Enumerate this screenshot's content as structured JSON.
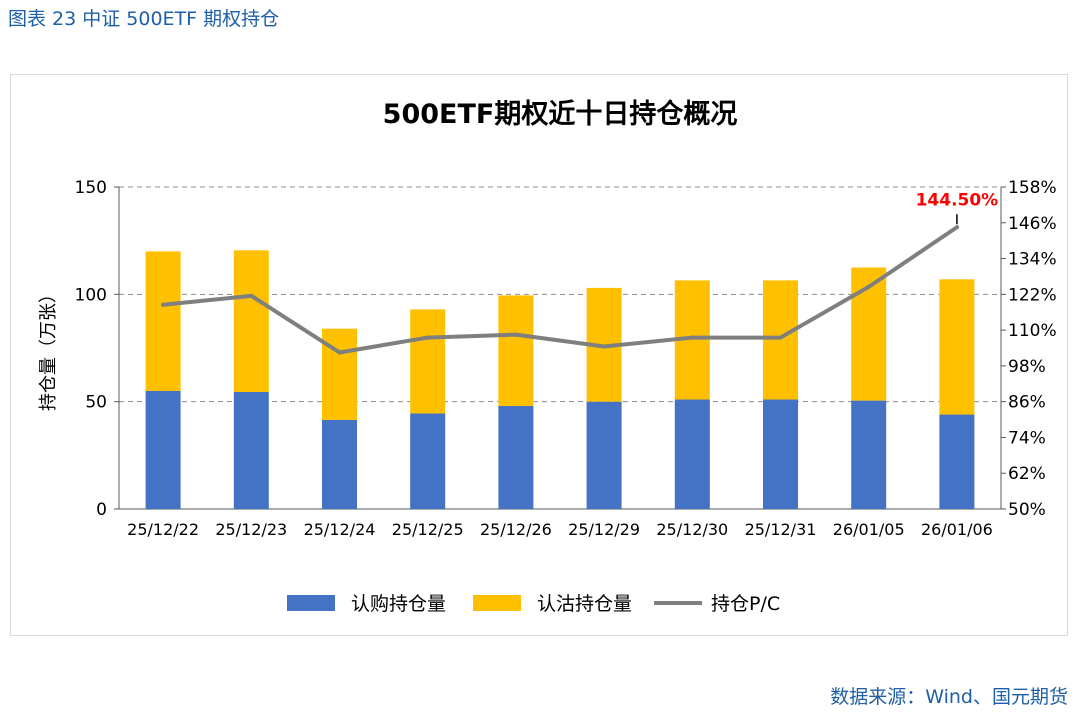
{
  "figure": {
    "caption": "图表 23 中证 500ETF 期权持仓",
    "source": "数据来源：Wind、国元期货"
  },
  "colors": {
    "call": "#4472c4",
    "put": "#ffc000",
    "pc_line": "#7f7f7f",
    "annotation": "#ff0000",
    "caption": "#1f5fa8"
  },
  "chart_data": {
    "type": "bar",
    "stacked": true,
    "title": "500ETF期权近十日持仓概况",
    "ylabel": "持仓量（万张）",
    "xlabel": "",
    "categories": [
      "25/12/22",
      "25/12/23",
      "25/12/24",
      "25/12/25",
      "25/12/26",
      "25/12/29",
      "25/12/30",
      "25/12/31",
      "26/01/05",
      "26/01/06"
    ],
    "series": [
      {
        "name": "认购持仓量",
        "type": "bar",
        "axis": "left",
        "values": [
          55,
          54.5,
          41.5,
          44.5,
          48,
          50,
          51,
          51,
          50.5,
          44
        ]
      },
      {
        "name": "认沽持仓量",
        "type": "bar",
        "axis": "left",
        "values": [
          65,
          66,
          42.5,
          48.5,
          51.5,
          53,
          55.5,
          55.5,
          62,
          63
        ]
      },
      {
        "name": "持仓P/C",
        "type": "line",
        "axis": "right",
        "values": [
          118.5,
          121.5,
          102.5,
          107.5,
          108.5,
          104.5,
          107.5,
          107.5,
          124.5,
          144.5
        ]
      }
    ],
    "ylim": [
      0,
      150
    ],
    "yticks": [
      "0",
      "50",
      "100",
      "150"
    ],
    "y2lim": [
      50,
      158
    ],
    "y2ticks": [
      "50%",
      "62%",
      "74%",
      "86%",
      "98%",
      "110%",
      "122%",
      "134%",
      "146%",
      "158%"
    ],
    "annotation": {
      "label": "144.50%",
      "index": 9
    },
    "legend": [
      "认购持仓量",
      "认沽持仓量",
      "持仓P/C"
    ],
    "legend_position": "bottom",
    "grid": "dashed horizontal"
  }
}
